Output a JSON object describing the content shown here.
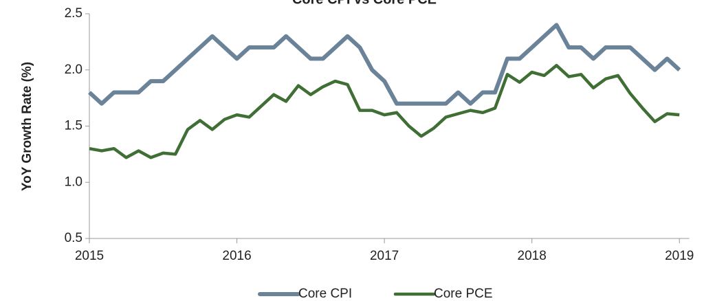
{
  "chart_data": {
    "type": "line",
    "title": "Core CPI vs Core PCE",
    "ylabel": "YoY Growth Rate (%)",
    "categories": [
      "2015",
      null,
      null,
      null,
      null,
      null,
      null,
      null,
      null,
      null,
      null,
      null,
      "2016",
      null,
      null,
      null,
      null,
      null,
      null,
      null,
      null,
      null,
      null,
      null,
      "2017",
      null,
      null,
      null,
      null,
      null,
      null,
      null,
      null,
      null,
      null,
      null,
      "2018",
      null,
      null,
      null,
      null,
      null,
      null,
      null,
      null,
      null,
      null,
      null,
      "2019"
    ],
    "series": [
      {
        "name": "Core CPI",
        "color": "#6b8399",
        "values": [
          1.8,
          1.7,
          1.8,
          1.8,
          1.8,
          1.9,
          1.9,
          2.0,
          2.1,
          2.2,
          2.3,
          2.2,
          2.1,
          2.2,
          2.2,
          2.2,
          2.3,
          2.2,
          2.1,
          2.1,
          2.2,
          2.3,
          2.2,
          2.0,
          1.9,
          1.7,
          1.7,
          1.7,
          1.7,
          1.7,
          1.8,
          1.7,
          1.8,
          1.8,
          2.1,
          2.1,
          2.2,
          2.3,
          2.4,
          2.2,
          2.2,
          2.1,
          2.2,
          2.2,
          2.2,
          2.1,
          2.0,
          2.1,
          2.0
        ]
      },
      {
        "name": "Core PCE",
        "color": "#3f6f34",
        "values": [
          1.3,
          1.28,
          1.3,
          1.22,
          1.28,
          1.22,
          1.26,
          1.25,
          1.47,
          1.55,
          1.47,
          1.56,
          1.6,
          1.58,
          1.68,
          1.78,
          1.72,
          1.86,
          1.78,
          1.85,
          1.9,
          1.87,
          1.64,
          1.64,
          1.6,
          1.62,
          1.5,
          1.41,
          1.48,
          1.58,
          1.61,
          1.64,
          1.62,
          1.66,
          1.96,
          1.89,
          1.98,
          1.95,
          2.04,
          1.94,
          1.96,
          1.84,
          1.92,
          1.95,
          1.79,
          1.66,
          1.54,
          1.61,
          1.6
        ]
      }
    ],
    "ylim": [
      0.5,
      2.5
    ],
    "yticks": [
      0.5,
      {
        "value": 1,
        "label": "1.0"
      },
      1.5,
      {
        "value": 2,
        "label": "2.0"
      },
      2.5
    ],
    "legend": "bottom"
  }
}
